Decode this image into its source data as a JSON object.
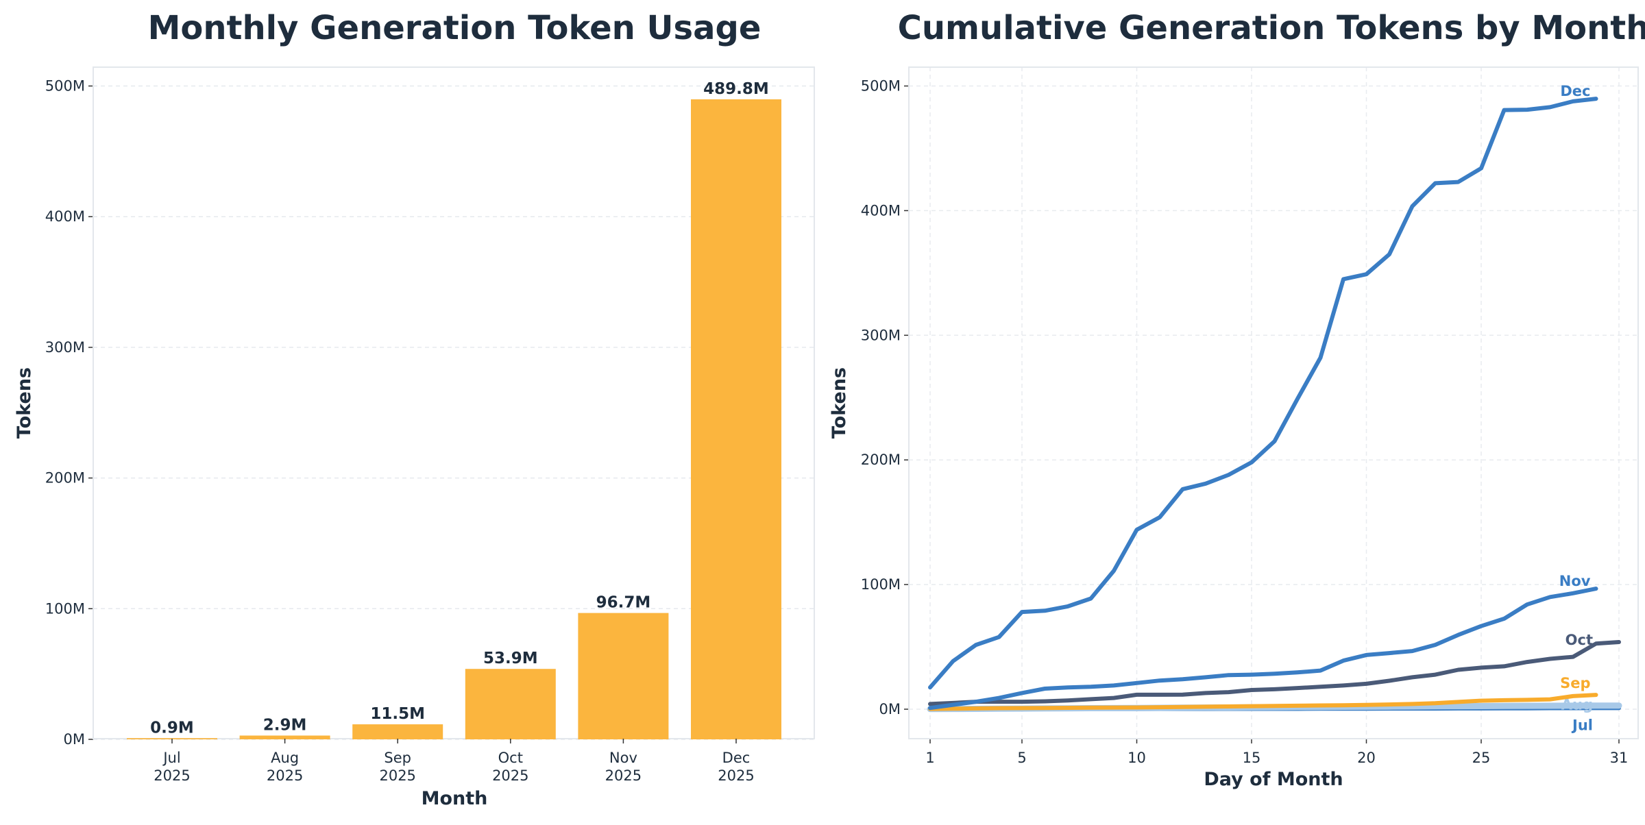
{
  "chart_data": [
    {
      "type": "bar",
      "title": "Monthly Generation Token Usage",
      "xlabel": "Month",
      "ylabel": "Tokens",
      "categories": [
        [
          "Jul",
          "2025"
        ],
        [
          "Aug",
          "2025"
        ],
        [
          "Sep",
          "2025"
        ],
        [
          "Oct",
          "2025"
        ],
        [
          "Nov",
          "2025"
        ],
        [
          "Dec",
          "2025"
        ]
      ],
      "values": [
        0.9,
        2.9,
        11.5,
        53.9,
        96.7,
        489.8
      ],
      "value_labels": [
        "0.9M",
        "2.9M",
        "11.5M",
        "53.9M",
        "96.7M",
        "489.8M"
      ],
      "unit": "M",
      "ylim": [
        0,
        515
      ],
      "yticks": [
        0,
        100,
        200,
        300,
        400,
        500
      ],
      "ytick_labels": [
        "0M",
        "100M",
        "200M",
        "300M",
        "400M",
        "500M"
      ],
      "grid": true,
      "bar_color": "#fbb53e"
    },
    {
      "type": "line",
      "title": "Cumulative Generation Tokens by Month",
      "xlabel": "Day of Month",
      "ylabel": "Tokens",
      "xlim": [
        1,
        31
      ],
      "xticks": [
        1,
        5,
        10,
        15,
        20,
        25,
        31
      ],
      "ylim": [
        -24,
        515
      ],
      "yticks": [
        0,
        100,
        200,
        300,
        400,
        500
      ],
      "ytick_labels": [
        "0M",
        "100M",
        "200M",
        "300M",
        "400M",
        "500M"
      ],
      "grid": true,
      "legend": "inline labels at line ends",
      "series": [
        {
          "name": "Jul",
          "color": "#3a7dc4",
          "values": [
            0,
            0,
            0,
            0,
            0,
            0.1,
            0.1,
            0.1,
            0.1,
            0.1,
            0.2,
            0.2,
            0.2,
            0.3,
            0.3,
            0.3,
            0.3,
            0.4,
            0.4,
            0.4,
            0.5,
            0.5,
            0.5,
            0.6,
            0.6,
            0.7,
            0.7,
            0.8,
            0.8,
            0.9,
            0.9
          ]
        },
        {
          "name": "Aug",
          "color": "#a8c9e8",
          "values": [
            0.1,
            0.2,
            0.3,
            0.4,
            0.5,
            0.6,
            0.7,
            0.8,
            0.9,
            1.0,
            1.1,
            1.2,
            1.3,
            1.4,
            1.5,
            1.6,
            1.7,
            1.8,
            1.9,
            2.0,
            2.1,
            2.2,
            2.3,
            2.4,
            2.5,
            2.6,
            2.7,
            2.75,
            2.8,
            2.85,
            2.9
          ]
        },
        {
          "name": "Sep",
          "color": "#f8ab2c",
          "values": [
            0.2,
            0.4,
            0.6,
            0.8,
            0.9,
            1.0,
            1.1,
            1.2,
            1.3,
            1.4,
            1.6,
            1.8,
            2.0,
            2.2,
            2.4,
            2.6,
            2.8,
            3.0,
            3.2,
            3.4,
            3.8,
            4.2,
            4.8,
            5.8,
            6.8,
            7.2,
            7.5,
            7.9,
            10.5,
            11.5
          ]
        },
        {
          "name": "Oct",
          "color": "#4a5a78",
          "values": [
            4.2,
            5,
            6,
            6,
            6,
            6.3,
            7,
            8,
            9,
            11.6,
            11.6,
            11.7,
            13,
            13.7,
            15.4,
            16,
            17,
            18,
            19,
            20.4,
            22.8,
            25.6,
            27.7,
            31.6,
            33.3,
            34.4,
            37.9,
            40.4,
            42,
            52.6,
            53.9
          ]
        },
        {
          "name": "Nov",
          "color": "#3a7dc4",
          "values": [
            1,
            3.5,
            6,
            9,
            13,
            16.5,
            17.5,
            18,
            19,
            21,
            23,
            24,
            25.6,
            27.4,
            27.7,
            28.4,
            29.5,
            31,
            39,
            43.5,
            45,
            46.7,
            51.6,
            59.6,
            66.7,
            72.6,
            84,
            90,
            93,
            96.7
          ]
        },
        {
          "name": "Dec",
          "color": "#3a7dc4",
          "values": [
            17.5,
            38.6,
            51.6,
            57.9,
            78,
            79,
            82.5,
            88.8,
            111,
            144,
            154,
            176.5,
            181,
            188,
            198,
            215,
            249,
            282,
            345,
            349,
            365,
            403.5,
            422,
            423,
            434,
            480.7,
            481,
            483,
            487.7,
            489.8
          ]
        }
      ]
    }
  ]
}
